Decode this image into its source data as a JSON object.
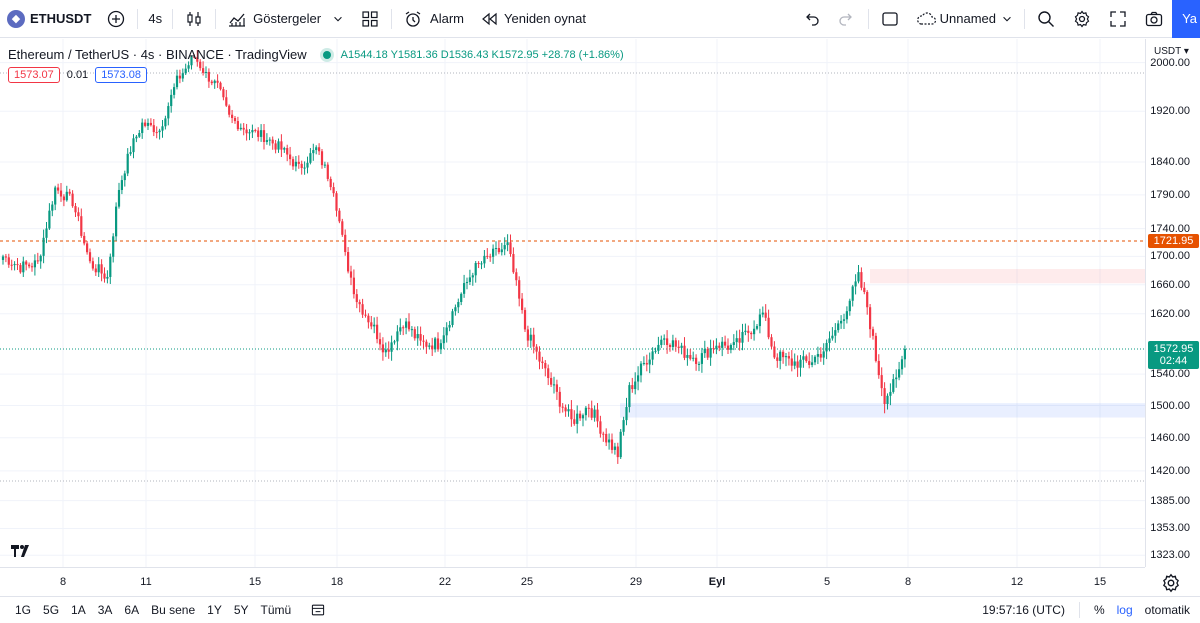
{
  "toolbar": {
    "symbol": "ETHUSDT",
    "symbol_glyph": "◆",
    "interval": "4s",
    "indicators_label": "Göstergeler",
    "alarm_label": "Alarm",
    "replay_label": "Yeniden oynat",
    "layout_name": "Unnamed",
    "publish_label": "Ya"
  },
  "legend": {
    "title": "Ethereum / TetherUS · 4s · BINANCE · TradingView",
    "ohlc": "A1544.18 Y1581.36 D1536.43 K1572.95 +28.78 (+1.86%)",
    "bid": "1573.07",
    "spread": "0.01",
    "ask": "1573.08"
  },
  "price_axis": {
    "currency": "USDT",
    "ticks": [
      "2000.00",
      "1920.00",
      "1840.00",
      "1790.00",
      "1740.00",
      "1700.00",
      "1660.00",
      "1620.00",
      "1540.00",
      "1500.00",
      "1460.00",
      "1420.00",
      "1385.00",
      "1353.00",
      "1323.00"
    ],
    "last_price_label": "1572.95",
    "countdown_label": "02:44",
    "line_price_label": "1721.95"
  },
  "time_axis": {
    "labels": [
      "8",
      "11",
      "15",
      "18",
      "22",
      "25",
      "29",
      "Eyl",
      "5",
      "8",
      "12",
      "15"
    ]
  },
  "bottom_bar": {
    "ranges": [
      "1G",
      "5G",
      "1A",
      "3A",
      "6A",
      "Bu sene",
      "1Y",
      "5Y",
      "Tümü"
    ],
    "clock": "19:57:16 (UTC)",
    "percent_label": "%",
    "log_label": "log",
    "auto_label": "otomatik"
  },
  "colors": {
    "up": "#089981",
    "down": "#f23645",
    "accent": "#2962ff",
    "alert_line": "#e65100"
  },
  "chart_data": {
    "type": "candlestick",
    "symbol": "ETHUSDT",
    "y_scale": "log",
    "ylim": [
      1310,
      2040
    ],
    "x_labels": [
      "8",
      "11",
      "15",
      "18",
      "22",
      "25",
      "29",
      "Eyl",
      "5",
      "8",
      "12",
      "15"
    ],
    "horizontal_line": 1721.95,
    "last_price": 1572.95,
    "zones": [
      {
        "color": "red",
        "from": 1662,
        "to": 1682
      },
      {
        "color": "blue",
        "from": 1485,
        "to": 1503
      }
    ],
    "anchors_approx_close": [
      [
        0,
        1700
      ],
      [
        6,
        1685
      ],
      [
        12,
        1690
      ],
      [
        18,
        1800
      ],
      [
        24,
        1780
      ],
      [
        30,
        1690
      ],
      [
        36,
        1670
      ],
      [
        40,
        1800
      ],
      [
        44,
        1860
      ],
      [
        48,
        1900
      ],
      [
        54,
        1890
      ],
      [
        60,
        1970
      ],
      [
        66,
        2010
      ],
      [
        70,
        1980
      ],
      [
        74,
        1960
      ],
      [
        78,
        1910
      ],
      [
        84,
        1890
      ],
      [
        90,
        1880
      ],
      [
        96,
        1860
      ],
      [
        102,
        1830
      ],
      [
        108,
        1860
      ],
      [
        114,
        1800
      ],
      [
        118,
        1700
      ],
      [
        122,
        1640
      ],
      [
        128,
        1600
      ],
      [
        132,
        1570
      ],
      [
        138,
        1610
      ],
      [
        144,
        1580
      ],
      [
        150,
        1580
      ],
      [
        156,
        1630
      ],
      [
        162,
        1680
      ],
      [
        168,
        1700
      ],
      [
        174,
        1715
      ],
      [
        180,
        1600
      ],
      [
        186,
        1550
      ],
      [
        190,
        1520
      ],
      [
        196,
        1480
      ],
      [
        202,
        1500
      ],
      [
        208,
        1460
      ],
      [
        212,
        1440
      ],
      [
        216,
        1520
      ],
      [
        222,
        1560
      ],
      [
        228,
        1590
      ],
      [
        234,
        1570
      ],
      [
        240,
        1560
      ],
      [
        246,
        1580
      ],
      [
        252,
        1575
      ],
      [
        258,
        1600
      ],
      [
        262,
        1620
      ],
      [
        266,
        1565
      ],
      [
        272,
        1555
      ],
      [
        278,
        1555
      ],
      [
        284,
        1575
      ],
      [
        290,
        1620
      ],
      [
        295,
        1670
      ],
      [
        298,
        1630
      ],
      [
        301,
        1560
      ],
      [
        304,
        1510
      ],
      [
        308,
        1530
      ],
      [
        311,
        1572.95
      ]
    ]
  }
}
